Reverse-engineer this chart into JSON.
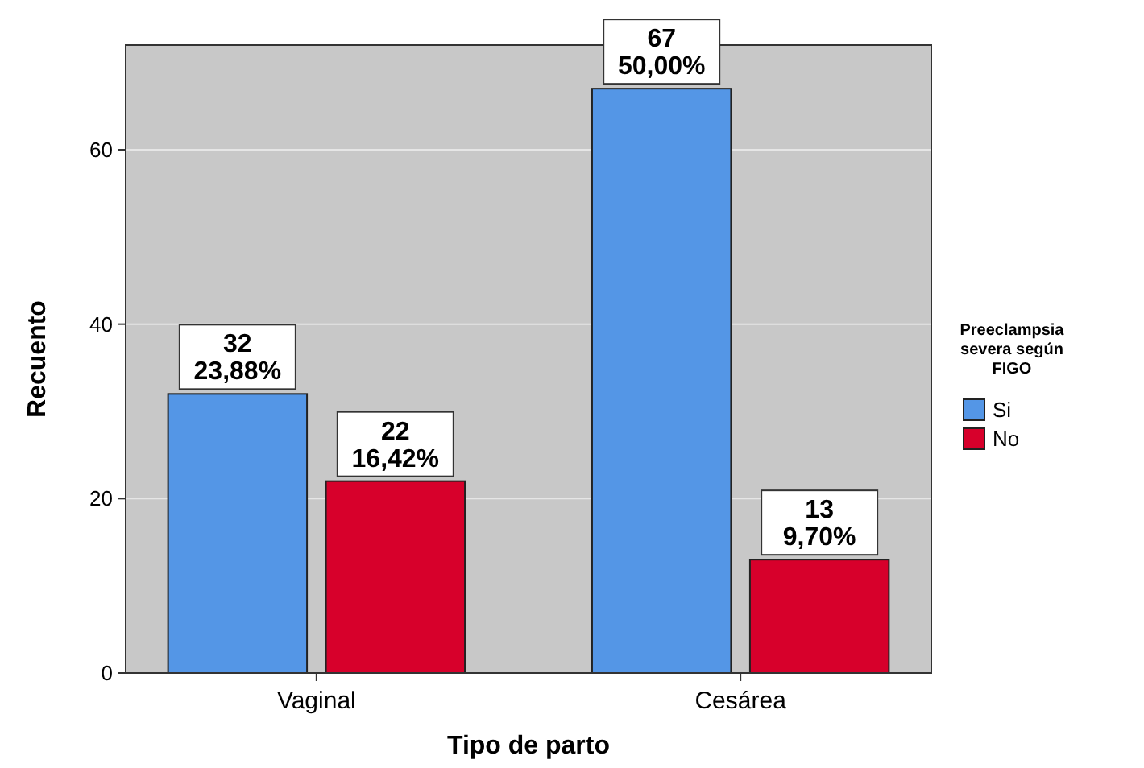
{
  "chart_data": {
    "type": "bar",
    "xlabel": "Tipo de parto",
    "ylabel": "Recuento",
    "legend_title": "Preeclampsia severa según FIGO",
    "categories": [
      "Vaginal",
      "Cesárea"
    ],
    "series": [
      {
        "name": "Si",
        "color": "#5496e6",
        "values": [
          32,
          67
        ],
        "value_labels": [
          "32\n23,88%",
          "67\n50,00%"
        ]
      },
      {
        "name": "No",
        "color": "#d7002b",
        "values": [
          22,
          13
        ],
        "value_labels": [
          "22\n16,42%",
          "13\n9,70%"
        ]
      }
    ],
    "ylim": [
      0,
      72
    ],
    "yticks": [
      0,
      20,
      40,
      60
    ],
    "grid": "y",
    "legend": "right"
  }
}
